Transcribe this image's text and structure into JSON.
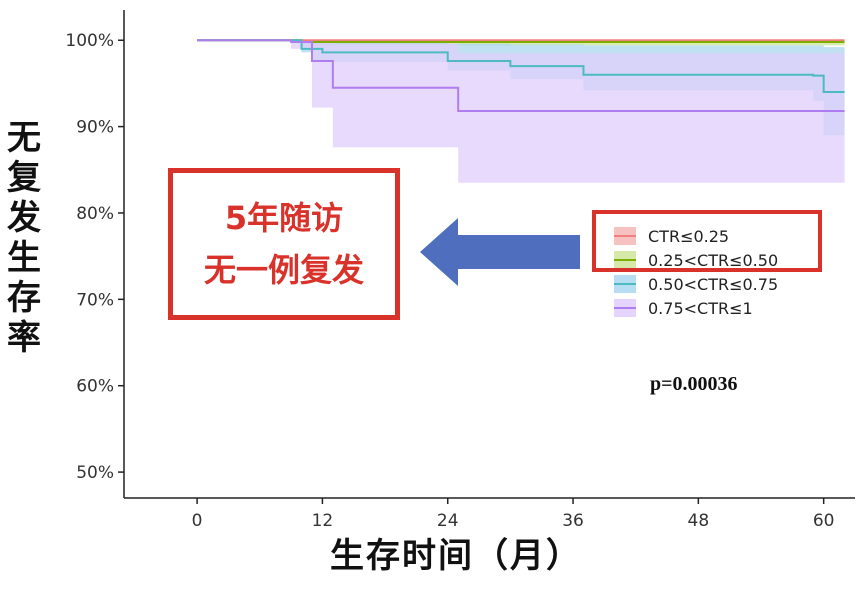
{
  "chart_data": {
    "type": "line",
    "chart_subtype": "kaplan-meier",
    "xlabel": "生存时间（月）",
    "ylabel": "无复发生存率",
    "xlim": [
      -7,
      63
    ],
    "ylim": [
      47,
      103.5
    ],
    "x_ticks": [
      0,
      12,
      24,
      36,
      48,
      60
    ],
    "y_ticks": [
      50,
      60,
      70,
      80,
      90,
      100
    ],
    "y_tick_labels": [
      "50%",
      "60%",
      "70%",
      "80%",
      "90%",
      "100%"
    ],
    "grid": false,
    "legend_position": "right",
    "annotation_p": "p=0.00036",
    "series": [
      {
        "name": "CTR≤0.25",
        "color": "#f08080",
        "fill": "#f6b6b6",
        "steps": [
          [
            0,
            100
          ],
          [
            62,
            100
          ]
        ],
        "ci": [
          [
            0,
            100,
            100
          ],
          [
            62,
            99.6,
            100
          ]
        ]
      },
      {
        "name": "0.25<CTR≤0.50",
        "color": "#7cae00",
        "fill": "#cfe59a",
        "steps": [
          [
            0,
            100
          ],
          [
            10,
            99.8
          ],
          [
            62,
            99.8
          ]
        ],
        "ci": [
          [
            0,
            100,
            100
          ],
          [
            10,
            99.4,
            100
          ],
          [
            62,
            99.3,
            100
          ]
        ]
      },
      {
        "name": "0.50<CTR≤0.75",
        "color": "#4bbbc1",
        "fill": "#a9d7ee",
        "steps": [
          [
            0,
            100
          ],
          [
            10,
            99
          ],
          [
            12,
            98.6
          ],
          [
            24,
            97.6
          ],
          [
            30,
            97
          ],
          [
            37,
            96
          ],
          [
            50,
            96
          ],
          [
            59,
            95.9
          ],
          [
            60,
            94
          ],
          [
            62,
            94
          ]
        ],
        "ci": [
          [
            0,
            100,
            100
          ],
          [
            10,
            98.6,
            100
          ],
          [
            11,
            97.5,
            99.8
          ],
          [
            24,
            96.5,
            99.6
          ],
          [
            30,
            95.5,
            99.5
          ],
          [
            37,
            94.2,
            99.4
          ],
          [
            59,
            93,
            99.4
          ],
          [
            60,
            89,
            99.2
          ],
          [
            62,
            89,
            99.2
          ]
        ]
      },
      {
        "name": "0.75<CTR≤1",
        "color": "#b07df0",
        "fill": "#e0cdfb",
        "steps": [
          [
            0,
            100
          ],
          [
            9,
            99.8
          ],
          [
            11,
            97.6
          ],
          [
            13,
            94.5
          ],
          [
            25,
            91.8
          ],
          [
            62,
            91.8
          ]
        ],
        "ci": [
          [
            0,
            100,
            100
          ],
          [
            9,
            99,
            100
          ],
          [
            11,
            92.2,
            99.8
          ],
          [
            13,
            87.6,
            99.6
          ],
          [
            25,
            83.5,
            98.5
          ],
          [
            62,
            83.5,
            98.5
          ]
        ]
      }
    ]
  },
  "callout": {
    "line1": "5年随访",
    "line2": "无一例复发"
  }
}
